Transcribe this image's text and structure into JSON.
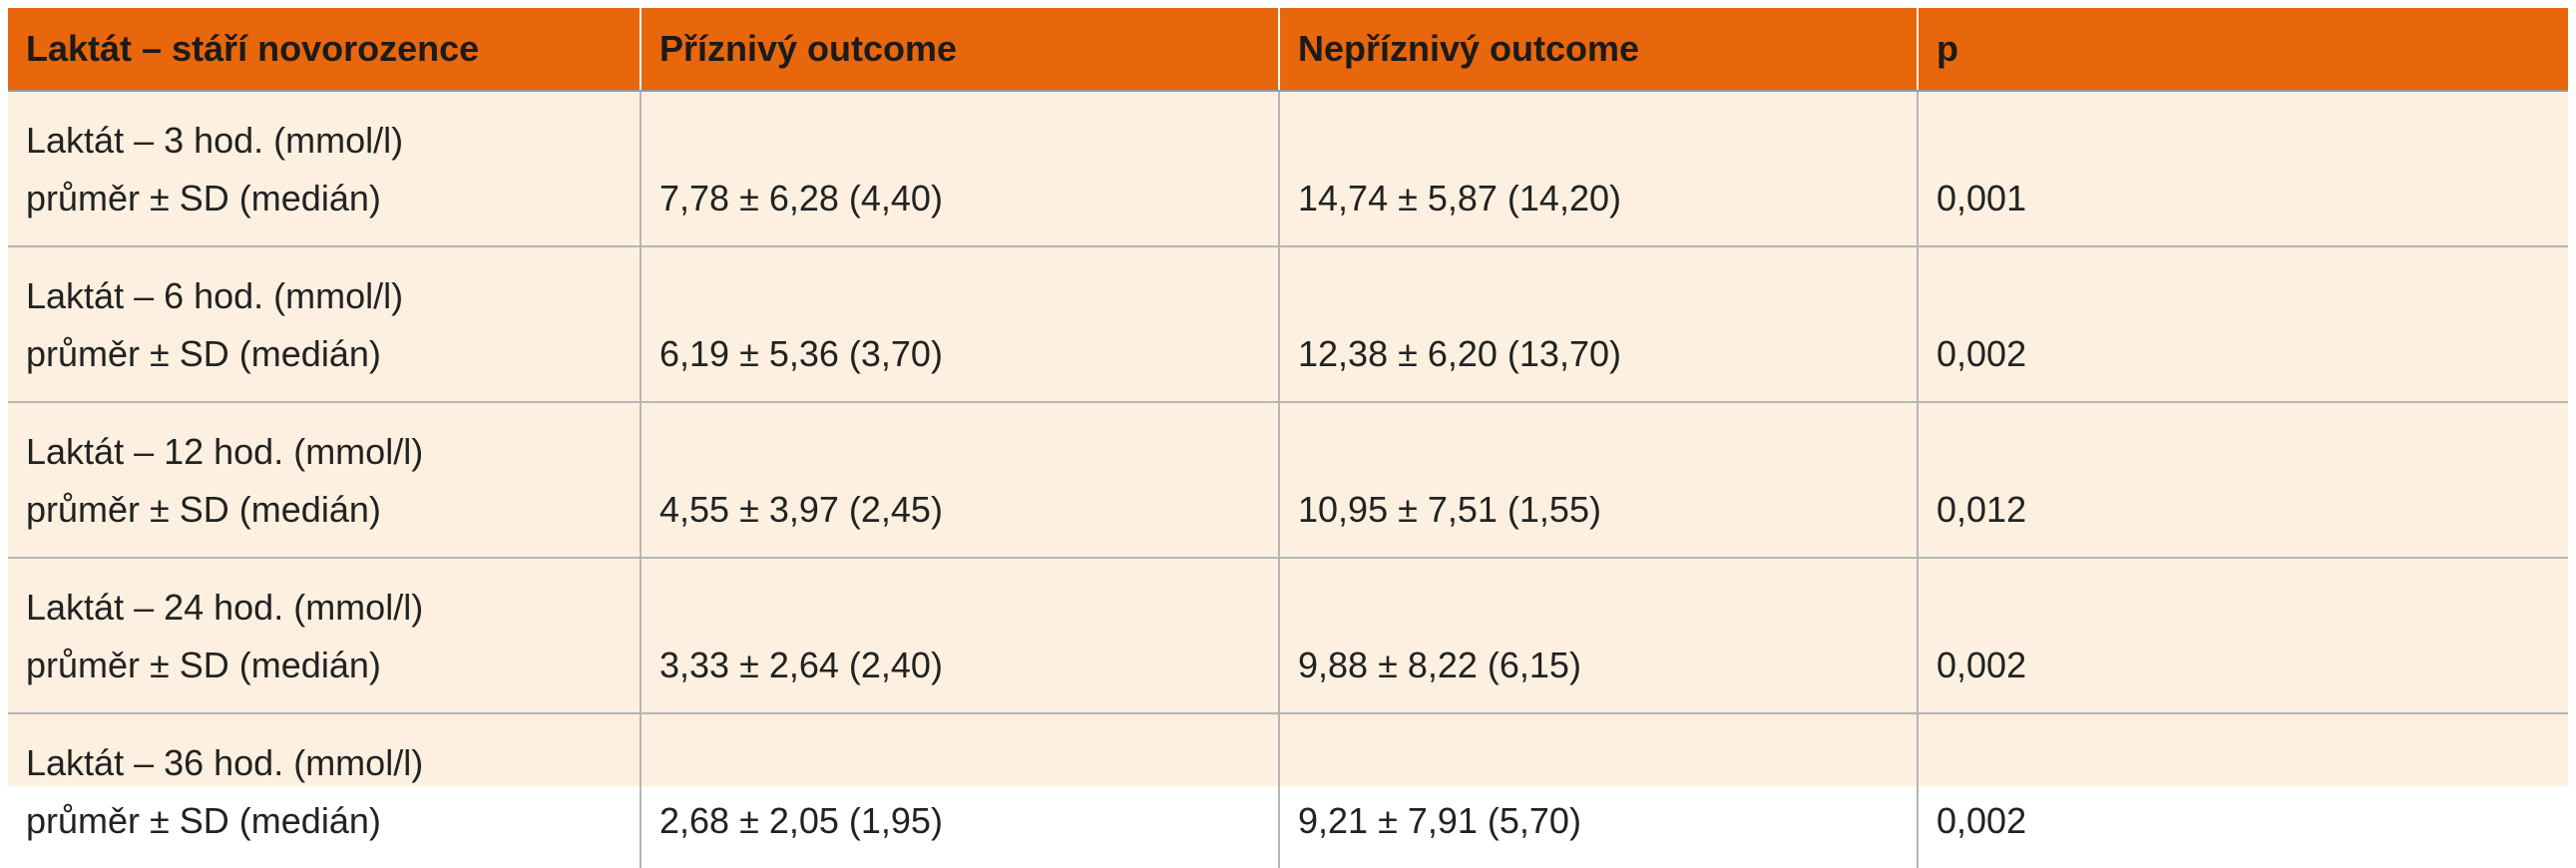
{
  "table": {
    "headers": [
      "Laktát – stáří novorozence",
      "Příznivý outcome",
      "Nepříznivý outcome",
      "p"
    ],
    "rows": [
      {
        "label_line1": "Laktát – 3 hod. (mmol/l)",
        "label_line2": "průměr ± SD (medián)",
        "favorable": "7,78 ± 6,28 (4,40)",
        "unfavorable": "14,74 ± 5,87 (14,20)",
        "p": "0,001"
      },
      {
        "label_line1": "Laktát – 6 hod. (mmol/l)",
        "label_line2": "průměr ± SD (medián)",
        "favorable": "6,19 ± 5,36 (3,70)",
        "unfavorable": "12,38 ± 6,20 (13,70)",
        "p": "0,002"
      },
      {
        "label_line1": "Laktát – 12 hod. (mmol/l)",
        "label_line2": "průměr ± SD (medián)",
        "favorable": "4,55 ± 3,97 (2,45)",
        "unfavorable": "10,95 ± 7,51 (1,55)",
        "p": "0,012"
      },
      {
        "label_line1": "Laktát – 24 hod. (mmol/l)",
        "label_line2": "průměr ± SD (medián)",
        "favorable": "3,33 ± 2,64 (2,40)",
        "unfavorable": "9,88 ± 8,22 (6,15)",
        "p": "0,002"
      },
      {
        "label_line1": "Laktát – 36 hod. (mmol/l)",
        "label_line2": "průměr ± SD (medián)",
        "favorable": "2,68 ± 2,05 (1,95)",
        "unfavorable": "9,21 ± 7,91 (5,70)",
        "p": "0,002"
      }
    ]
  },
  "colors": {
    "header_background": "#e8660c",
    "body_background": "#fdf0e0"
  }
}
